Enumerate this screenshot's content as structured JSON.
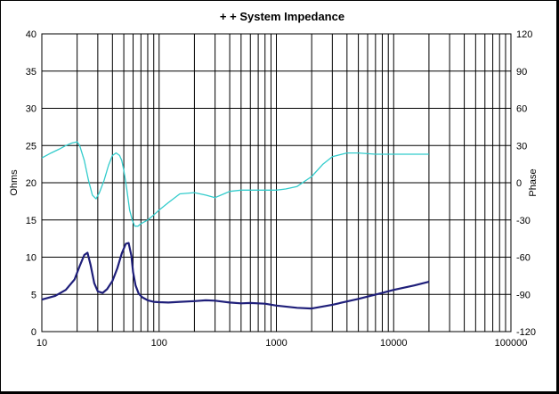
{
  "chart_data": {
    "type": "line",
    "title": "+ +   System Impedance",
    "ylabel": "Ohms",
    "y2label": "Phase",
    "xscale": "log",
    "xlim": [
      10,
      100000
    ],
    "ylim": [
      0,
      40
    ],
    "y2lim": [
      -120,
      120
    ],
    "grid": true,
    "x_ticks": [
      "10",
      "100",
      "1000",
      "10000",
      "100000"
    ],
    "y_ticks": [
      "0",
      "5",
      "10",
      "15",
      "20",
      "25",
      "30",
      "35",
      "40"
    ],
    "y2_ticks": [
      "-120",
      "-90",
      "-60",
      "-30",
      "0",
      "30",
      "60",
      "90",
      "120"
    ],
    "series": [
      {
        "color": "#1f1f7a",
        "axis": "left",
        "x": [
          10,
          13,
          16,
          19,
          21,
          23,
          24.5,
          26,
          28,
          30,
          33,
          36,
          40,
          44,
          48,
          52,
          55,
          58,
          60,
          63,
          67,
          72,
          80,
          90,
          100,
          120,
          150,
          200,
          250,
          300,
          400,
          500,
          600,
          800,
          1000,
          1500,
          2000,
          3000,
          5000,
          8000,
          10000,
          15000,
          20000
        ],
        "values": [
          4.3,
          4.8,
          5.6,
          7.0,
          8.8,
          10.3,
          10.6,
          9.0,
          6.5,
          5.4,
          5.2,
          5.7,
          6.8,
          8.5,
          10.5,
          11.8,
          11.9,
          10.2,
          8.0,
          6.2,
          5.1,
          4.6,
          4.2,
          4.0,
          3.95,
          3.9,
          4.0,
          4.1,
          4.2,
          4.15,
          3.9,
          3.8,
          3.85,
          3.75,
          3.5,
          3.2,
          3.1,
          3.6,
          4.4,
          5.2,
          5.6,
          6.2,
          6.7
        ]
      },
      {
        "color": "#33cccc",
        "axis": "right",
        "x": [
          10,
          12,
          14,
          16,
          18,
          20,
          21,
          23,
          25,
          27,
          29,
          31,
          34,
          37,
          40,
          43,
          46,
          48,
          50,
          53,
          56,
          59,
          62,
          66,
          70,
          80,
          90,
          100,
          120,
          150,
          200,
          250,
          300,
          400,
          500,
          600,
          800,
          1000,
          1200,
          1500,
          2000,
          2500,
          3000,
          4000,
          5000,
          7000,
          10000,
          15000,
          20000
        ],
        "values": [
          20,
          24,
          27,
          30,
          32,
          33,
          30,
          18,
          2,
          -10,
          -13,
          -8,
          2,
          14,
          22,
          24,
          22,
          18,
          10,
          -5,
          -22,
          -30,
          -35,
          -35,
          -33,
          -30,
          -26,
          -22,
          -16,
          -9,
          -8,
          -10,
          -12,
          -7,
          -6,
          -6,
          -6,
          -6,
          -5,
          -3,
          5,
          15,
          21,
          24,
          24,
          23,
          23,
          23,
          23
        ]
      }
    ]
  }
}
